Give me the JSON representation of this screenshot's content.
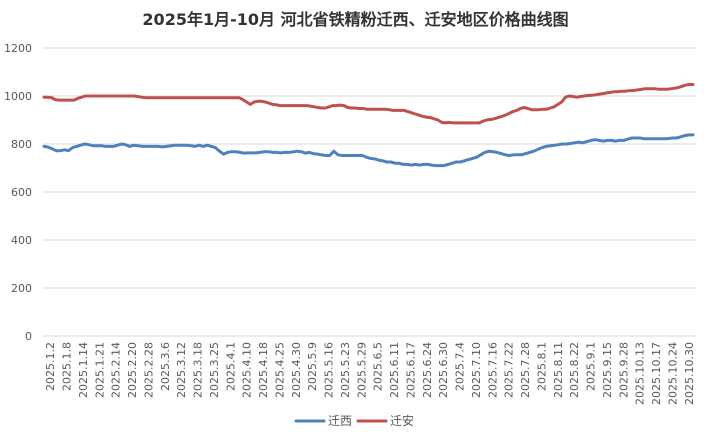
{
  "chart_data": {
    "type": "line",
    "title": "2025年1月-10月 河北省铁精粉迁西、迁安地区价格曲线图",
    "xlabel": "",
    "ylabel": "",
    "ylim": [
      0,
      1200
    ],
    "yticks": [
      0,
      200,
      400,
      600,
      800,
      1000,
      1200
    ],
    "grid": true,
    "legend_position": "bottom",
    "x_tick_labels": [
      "2025.1.2",
      "2025.1.8",
      "2025.1.14",
      "2025.1.21",
      "2025.2.14",
      "2025.2.20",
      "2025.2.28",
      "2025.3.6",
      "2025.3.12",
      "2025.3.18",
      "2025.3.25",
      "2025.4.1",
      "2025.4.10",
      "2025.4.18",
      "2025.4.25",
      "2025.4.30",
      "2025.5.9",
      "2025.5.16",
      "2025.5.23",
      "2025.5.29",
      "2025.6.5",
      "2025.6.11",
      "2025.6.17",
      "2025.6.24",
      "2025.6.30",
      "2025.7.4",
      "2025.7.10",
      "2025.7.16",
      "2025.7.22",
      "2025.7.28",
      "2025.8.1",
      "2025.8.11",
      "2025.8.22",
      "2025.9.1",
      "2025.9.15",
      "2025.9.28",
      "2025.10.13",
      "2025.10.17",
      "2025.10.24",
      "2025.10.30"
    ],
    "series": [
      {
        "name": "迁西",
        "color": "#4F81BD",
        "values": [
          790,
          787,
          780,
          772,
          772,
          776,
          772,
          785,
          790,
          795,
          800,
          797,
          793,
          793,
          793,
          790,
          790,
          790,
          795,
          800,
          797,
          790,
          795,
          793,
          790,
          790,
          790,
          790,
          790,
          788,
          790,
          792,
          795,
          795,
          795,
          795,
          793,
          790,
          795,
          790,
          795,
          790,
          785,
          770,
          758,
          765,
          768,
          768,
          765,
          762,
          763,
          763,
          763,
          765,
          768,
          768,
          765,
          765,
          763,
          765,
          765,
          767,
          770,
          768,
          762,
          765,
          760,
          758,
          755,
          752,
          752,
          770,
          755,
          752,
          752,
          752,
          752,
          752,
          752,
          745,
          740,
          738,
          733,
          730,
          725,
          725,
          720,
          720,
          715,
          715,
          712,
          715,
          712,
          715,
          715,
          712,
          710,
          710,
          710,
          715,
          720,
          725,
          725,
          730,
          735,
          740,
          745,
          755,
          765,
          770,
          768,
          765,
          760,
          755,
          752,
          755,
          755,
          755,
          760,
          765,
          770,
          778,
          785,
          790,
          792,
          795,
          797,
          800,
          800,
          802,
          805,
          808,
          805,
          810,
          815,
          818,
          815,
          812,
          815,
          815,
          812,
          815,
          815,
          820,
          825,
          825,
          825,
          822,
          822,
          822,
          822,
          822,
          822,
          823,
          825,
          825,
          830,
          835,
          838,
          838
        ]
      },
      {
        "name": "迁安",
        "color": "#C0504D",
        "values": [
          995,
          995,
          993,
          985,
          983,
          983,
          983,
          983,
          983,
          990,
          995,
          1000,
          1000,
          1000,
          1000,
          1000,
          1000,
          1000,
          1000,
          1000,
          1000,
          1000,
          1000,
          1000,
          1000,
          998,
          995,
          993,
          993,
          993,
          993,
          993,
          993,
          993,
          993,
          993,
          993,
          993,
          993,
          993,
          993,
          993,
          993,
          993,
          993,
          993,
          993,
          993,
          993,
          993,
          993,
          993,
          993,
          985,
          975,
          965,
          975,
          978,
          978,
          975,
          970,
          965,
          963,
          960,
          960,
          960,
          960,
          960,
          960,
          960,
          960,
          958,
          955,
          952,
          950,
          950,
          955,
          960,
          960,
          962,
          960,
          952,
          950,
          950,
          948,
          948,
          945,
          945,
          945,
          945,
          945,
          945,
          943,
          940,
          940,
          940,
          940,
          935,
          930,
          925,
          920,
          915,
          912,
          910,
          905,
          900,
          890,
          888,
          890,
          888,
          888,
          888,
          888,
          888,
          888,
          888,
          888,
          895,
          900,
          902,
          905,
          910,
          915,
          920,
          928,
          935,
          940,
          948,
          952,
          948,
          943,
          943,
          943,
          945,
          945,
          950,
          955,
          965,
          975,
          995,
          1000,
          998,
          995,
          998,
          1000,
          1002,
          1003,
          1005,
          1008,
          1010,
          1013,
          1015,
          1018,
          1018,
          1020,
          1020,
          1022,
          1023,
          1025,
          1027,
          1030,
          1030,
          1030,
          1030,
          1028,
          1028,
          1028,
          1030,
          1032,
          1035,
          1040,
          1045,
          1048,
          1048
        ]
      }
    ]
  }
}
